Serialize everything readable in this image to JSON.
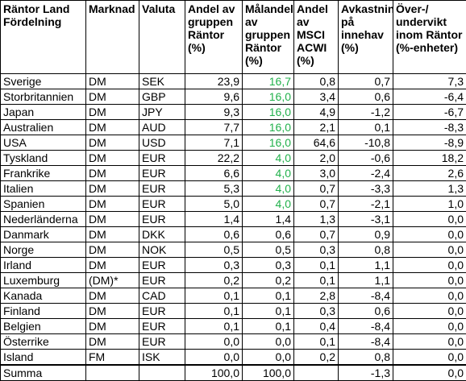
{
  "headers": [
    "Räntor Land Fördelning",
    "Marknad",
    "Valuta",
    "Andel av gruppen Räntor (%)",
    "Målandel av gruppen Räntor (%)",
    "Andel av MSCI ACWI (%)",
    "Avkastning på innehav (%)",
    "Över-/ undervikt inom Räntor (%-enheter)"
  ],
  "colors": {
    "target_share": "#22b14c"
  },
  "rows": [
    {
      "land": "Sverige",
      "marknad": "DM",
      "valuta": "SEK",
      "andel": "23,9",
      "malandel": "16,7",
      "msci": "0,8",
      "avkastning": "0,7",
      "over": "7,3"
    },
    {
      "land": "Storbritannien",
      "marknad": "DM",
      "valuta": "GBP",
      "andel": "9,6",
      "malandel": "16,0",
      "msci": "3,4",
      "avkastning": "0,6",
      "over": "-6,4"
    },
    {
      "land": "Japan",
      "marknad": "DM",
      "valuta": "JPY",
      "andel": "9,3",
      "malandel": "16,0",
      "msci": "4,9",
      "avkastning": "-1,2",
      "over": "-6,7"
    },
    {
      "land": "Australien",
      "marknad": "DM",
      "valuta": "AUD",
      "andel": "7,7",
      "malandel": "16,0",
      "msci": "2,1",
      "avkastning": "0,1",
      "over": "-8,3"
    },
    {
      "land": "USA",
      "marknad": "DM",
      "valuta": "USD",
      "andel": "7,1",
      "malandel": "16,0",
      "msci": "64,6",
      "avkastning": "-10,8",
      "over": "-8,9"
    },
    {
      "land": "Tyskland",
      "marknad": "DM",
      "valuta": "EUR",
      "andel": "22,2",
      "malandel": "4,0",
      "msci": "2,0",
      "avkastning": "-0,6",
      "over": "18,2"
    },
    {
      "land": "Frankrike",
      "marknad": "DM",
      "valuta": "EUR",
      "andel": "6,6",
      "malandel": "4,0",
      "msci": "3,0",
      "avkastning": "-2,4",
      "over": "2,6"
    },
    {
      "land": "Italien",
      "marknad": "DM",
      "valuta": "EUR",
      "andel": "5,3",
      "malandel": "4,0",
      "msci": "0,7",
      "avkastning": "-3,3",
      "over": "1,3"
    },
    {
      "land": "Spanien",
      "marknad": "DM",
      "valuta": "EUR",
      "andel": "5,0",
      "malandel": "4,0",
      "msci": "0,7",
      "avkastning": "-2,1",
      "over": "1,0"
    },
    {
      "land": "Nederländerna",
      "marknad": "DM",
      "valuta": "EUR",
      "andel": "1,4",
      "malandel": "1,4",
      "msci": "1,3",
      "avkastning": "-3,1",
      "over": "0,0"
    },
    {
      "land": "Danmark",
      "marknad": "DM",
      "valuta": "DKK",
      "andel": "0,6",
      "malandel": "0,6",
      "msci": "0,7",
      "avkastning": "0,9",
      "over": "0,0"
    },
    {
      "land": "Norge",
      "marknad": "DM",
      "valuta": "NOK",
      "andel": "0,5",
      "malandel": "0,5",
      "msci": "0,3",
      "avkastning": "0,8",
      "over": "0,0"
    },
    {
      "land": "Irland",
      "marknad": "DM",
      "valuta": "EUR",
      "andel": "0,3",
      "malandel": "0,3",
      "msci": "0,1",
      "avkastning": "1,1",
      "over": "0,0"
    },
    {
      "land": "Luxemburg",
      "marknad": "(DM)*",
      "valuta": "EUR",
      "andel": "0,2",
      "malandel": "0,2",
      "msci": "0,1",
      "avkastning": "1,1",
      "over": "0,0"
    },
    {
      "land": "Kanada",
      "marknad": "DM",
      "valuta": "CAD",
      "andel": "0,1",
      "malandel": "0,1",
      "msci": "2,8",
      "avkastning": "-8,4",
      "over": "0,0"
    },
    {
      "land": "Finland",
      "marknad": "DM",
      "valuta": "EUR",
      "andel": "0,1",
      "malandel": "0,1",
      "msci": "0,3",
      "avkastning": "0,6",
      "over": "0,0"
    },
    {
      "land": "Belgien",
      "marknad": "DM",
      "valuta": "EUR",
      "andel": "0,1",
      "malandel": "0,1",
      "msci": "0,4",
      "avkastning": "-8,4",
      "over": "0,0"
    },
    {
      "land": "Österrike",
      "marknad": "DM",
      "valuta": "EUR",
      "andel": "0,0",
      "malandel": "0,0",
      "msci": "0,1",
      "avkastning": "-8,4",
      "over": "0,0"
    },
    {
      "land": "Island",
      "marknad": "FM",
      "valuta": "ISK",
      "andel": "0,0",
      "malandel": "0,0",
      "msci": "0,2",
      "avkastning": "0,8",
      "over": "0,0"
    }
  ],
  "green_target_rows": [
    0,
    1,
    2,
    3,
    4,
    5,
    6,
    7,
    8
  ],
  "summa": {
    "label": "Summa",
    "andel": "100,0",
    "malandel": "100,0",
    "avkastning": "-1,3",
    "over": "0,0"
  }
}
